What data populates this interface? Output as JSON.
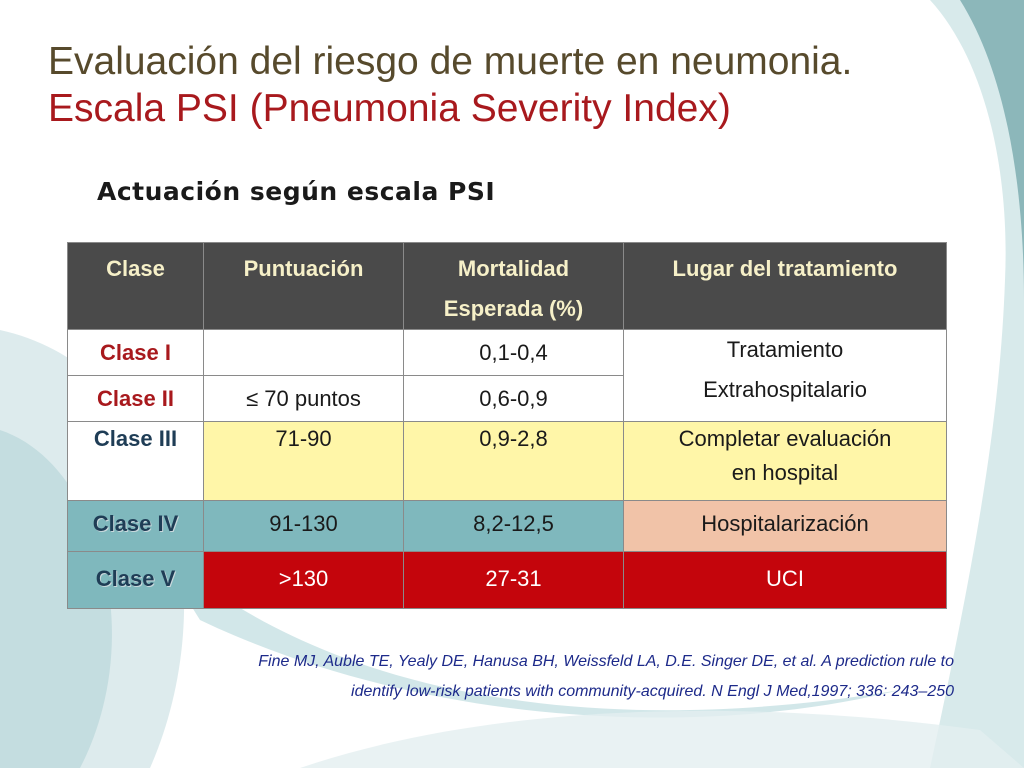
{
  "slide": {
    "title_line1": "Evaluación del riesgo de muerte en neumonia.",
    "title_line2": "Escala PSI (Pneumonia Severity Index)",
    "subtitle": "Actuación según escala PSI",
    "colors": {
      "title": "#574a2c",
      "title_accent": "#a8191d",
      "header_bg": "#4a4a4a",
      "header_text": "#f6f0c8",
      "yellow": "#fff6a8",
      "teal": "#7fb8bd",
      "peach": "#f1c3a8",
      "red": "#c4050c",
      "reference_text": "#1d2a8a"
    }
  },
  "table": {
    "headers": {
      "clase": "Clase",
      "puntuacion": "Puntuación",
      "mortalidad_l1": "Mortalidad",
      "mortalidad_l2": "Esperada (%)",
      "lugar": "Lugar del tratamiento"
    },
    "rows": [
      {
        "clase": "Clase I",
        "puntuacion": "",
        "mortalidad": "0,1-0,4"
      },
      {
        "clase": "Clase II",
        "puntuacion": "≤ 70 puntos",
        "mortalidad": "0,6-0,9"
      },
      {
        "clase": "Clase III",
        "puntuacion": "71-90",
        "mortalidad": "0,9-2,8",
        "lugar_l1": "Completar evaluación",
        "lugar_l2": "en hospital"
      },
      {
        "clase": "Clase IV",
        "puntuacion": "91-130",
        "mortalidad": "8,2-12,5",
        "lugar": "Hospitalarización"
      },
      {
        "clase": "Clase V",
        "puntuacion": ">130",
        "mortalidad": "27-31",
        "lugar": "UCI"
      }
    ],
    "merged_lugar_l1": "Tratamiento",
    "merged_lugar_l2": "Extrahospitalario"
  },
  "reference": {
    "line1": "Fine MJ, Auble TE,  Yealy DE, Hanusa BH, Weissfeld LA, D.E. Singer DE, et al. A prediction rule to",
    "line2": "identify low-risk patients with community-acquired.  N Engl J Med,1997; 336: 243–250"
  }
}
